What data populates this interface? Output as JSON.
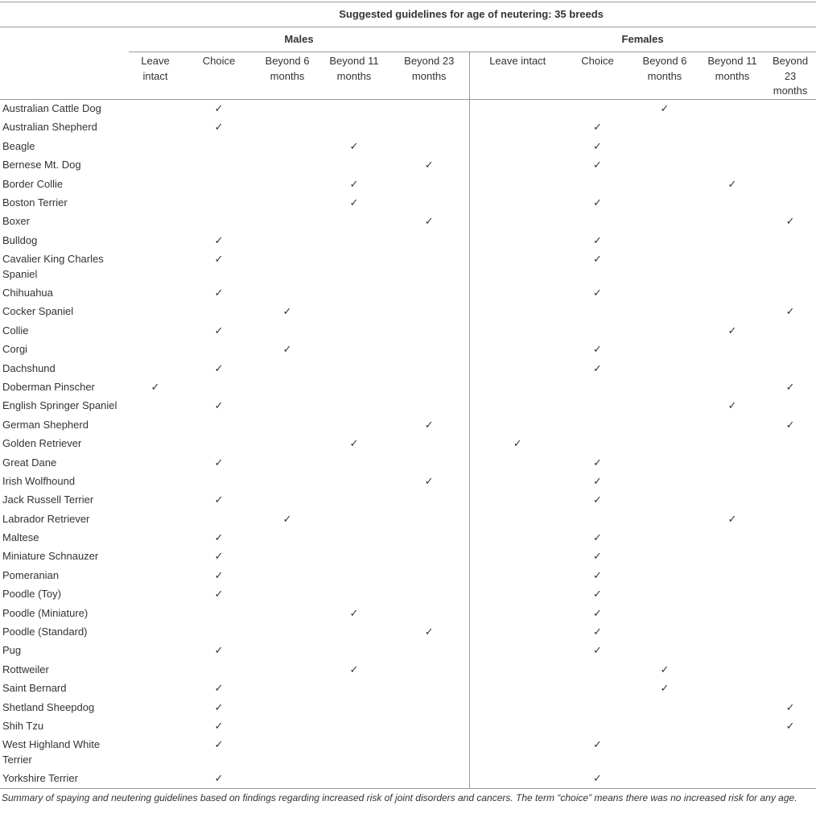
{
  "table": {
    "title": "Suggested guidelines for age of neutering: 35 breeds",
    "groups": [
      "Males",
      "Females"
    ],
    "columns": [
      "Leave intact",
      "Choice",
      "Beyond 6 months",
      "Beyond 11 months",
      "Beyond 23 months",
      "Leave intact",
      "Choice",
      "Beyond 6 months",
      "Beyond 11 months",
      "Beyond 23 months"
    ],
    "rows": [
      {
        "breed": "Australian Cattle Dog",
        "cells": [
          null,
          "✓",
          null,
          null,
          null,
          null,
          null,
          "✓",
          null,
          null
        ]
      },
      {
        "breed": "Australian Shepherd",
        "cells": [
          null,
          "✓",
          null,
          null,
          null,
          null,
          "✓",
          null,
          null,
          null
        ]
      },
      {
        "breed": "Beagle",
        "cells": [
          null,
          null,
          null,
          "✓",
          null,
          null,
          "✓",
          null,
          null,
          null
        ]
      },
      {
        "breed": "Bernese Mt. Dog",
        "cells": [
          null,
          null,
          null,
          null,
          "✓",
          null,
          "✓",
          null,
          null,
          null
        ]
      },
      {
        "breed": "Border Collie",
        "cells": [
          null,
          null,
          null,
          "✓",
          null,
          null,
          null,
          null,
          "✓",
          null
        ]
      },
      {
        "breed": "Boston Terrier",
        "cells": [
          null,
          null,
          null,
          "✓",
          null,
          null,
          "✓",
          null,
          null,
          null
        ]
      },
      {
        "breed": "Boxer",
        "cells": [
          null,
          null,
          null,
          null,
          "✓",
          null,
          null,
          null,
          null,
          "✓"
        ]
      },
      {
        "breed": "Bulldog",
        "cells": [
          null,
          "✓",
          null,
          null,
          null,
          null,
          "✓",
          null,
          null,
          null
        ]
      },
      {
        "breed": "Cavalier King Charles Spaniel",
        "cells": [
          null,
          "✓",
          null,
          null,
          null,
          null,
          "✓",
          null,
          null,
          null
        ]
      },
      {
        "breed": "Chihuahua",
        "cells": [
          null,
          "✓",
          null,
          null,
          null,
          null,
          "✓",
          null,
          null,
          null
        ]
      },
      {
        "breed": "Cocker Spaniel",
        "cells": [
          null,
          null,
          "✓",
          null,
          null,
          null,
          null,
          null,
          null,
          "✓"
        ]
      },
      {
        "breed": "Collie",
        "cells": [
          null,
          "✓",
          null,
          null,
          null,
          null,
          null,
          null,
          "✓",
          null
        ]
      },
      {
        "breed": "Corgi",
        "cells": [
          null,
          null,
          "✓",
          null,
          null,
          null,
          "✓",
          null,
          null,
          null
        ]
      },
      {
        "breed": "Dachshund",
        "cells": [
          null,
          "✓",
          null,
          null,
          null,
          null,
          "✓",
          null,
          null,
          null
        ]
      },
      {
        "breed": "Doberman Pinscher",
        "cells": [
          "✓",
          null,
          null,
          null,
          null,
          null,
          null,
          null,
          null,
          "✓"
        ]
      },
      {
        "breed": "English Springer Spaniel",
        "cells": [
          null,
          "✓",
          null,
          null,
          null,
          null,
          null,
          null,
          "✓",
          null
        ]
      },
      {
        "breed": "German Shepherd",
        "cells": [
          null,
          null,
          null,
          null,
          "✓",
          null,
          null,
          null,
          null,
          "✓"
        ]
      },
      {
        "breed": "Golden Retriever",
        "cells": [
          null,
          null,
          null,
          "✓",
          null,
          "✓",
          null,
          null,
          null,
          null
        ]
      },
      {
        "breed": "Great Dane",
        "cells": [
          null,
          "✓",
          null,
          null,
          null,
          null,
          "✓",
          null,
          null,
          null
        ]
      },
      {
        "breed": "Irish Wolfhound",
        "cells": [
          null,
          null,
          null,
          null,
          "✓",
          null,
          "✓",
          null,
          null,
          null
        ]
      },
      {
        "breed": "Jack Russell Terrier",
        "cells": [
          null,
          "✓",
          null,
          null,
          null,
          null,
          "✓",
          null,
          null,
          null
        ]
      },
      {
        "breed": "Labrador Retriever",
        "cells": [
          null,
          null,
          "✓",
          null,
          null,
          null,
          null,
          null,
          "✓",
          null
        ]
      },
      {
        "breed": "Maltese",
        "cells": [
          null,
          "✓",
          null,
          null,
          null,
          null,
          "✓",
          null,
          null,
          null
        ]
      },
      {
        "breed": "Miniature Schnauzer",
        "cells": [
          null,
          "✓",
          null,
          null,
          null,
          null,
          "✓",
          null,
          null,
          null
        ]
      },
      {
        "breed": "Pomeranian",
        "cells": [
          null,
          "✓",
          null,
          null,
          null,
          null,
          "✓",
          null,
          null,
          null
        ]
      },
      {
        "breed": "Poodle (Toy)",
        "cells": [
          null,
          "✓",
          null,
          null,
          null,
          null,
          "✓",
          null,
          null,
          null
        ]
      },
      {
        "breed": "Poodle (Miniature)",
        "cells": [
          null,
          null,
          null,
          "✓",
          null,
          null,
          "✓",
          null,
          null,
          null
        ]
      },
      {
        "breed": "Poodle (Standard)",
        "cells": [
          null,
          null,
          null,
          null,
          "✓",
          null,
          "✓",
          null,
          null,
          null
        ]
      },
      {
        "breed": "Pug",
        "cells": [
          null,
          "✓",
          null,
          null,
          null,
          null,
          "✓",
          null,
          null,
          null
        ]
      },
      {
        "breed": "Rottweiler",
        "cells": [
          null,
          null,
          null,
          "✓",
          null,
          null,
          null,
          "✓",
          null,
          null
        ]
      },
      {
        "breed": "Saint Bernard",
        "cells": [
          null,
          "✓",
          null,
          null,
          null,
          null,
          null,
          "✓",
          null,
          null
        ]
      },
      {
        "breed": "Shetland Sheepdog",
        "cells": [
          null,
          "✓",
          null,
          null,
          null,
          null,
          null,
          null,
          null,
          "✓"
        ]
      },
      {
        "breed": "Shih Tzu",
        "cells": [
          null,
          "✓",
          null,
          null,
          null,
          null,
          null,
          null,
          null,
          "✓"
        ]
      },
      {
        "breed": "West Highland White Terrier",
        "cells": [
          null,
          "✓",
          null,
          null,
          null,
          null,
          "✓",
          null,
          null,
          null
        ]
      },
      {
        "breed": "Yorkshire Terrier",
        "cells": [
          null,
          "✓",
          null,
          null,
          null,
          null,
          "✓",
          null,
          null,
          null
        ]
      }
    ]
  },
  "caption": "Summary of spaying and neutering guidelines based on findings regarding increased risk of joint disorders and cancers. The term “choice” means there was no increased risk for any age."
}
